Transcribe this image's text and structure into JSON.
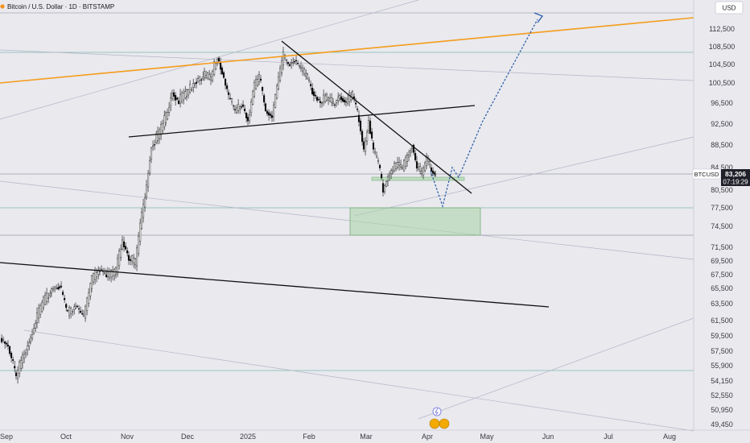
{
  "header": {
    "title": "Bitcoin / U.S. Dollar · 1D · BITSTAMP",
    "currency_button": "USD"
  },
  "chart_data": {
    "type": "candlestick",
    "symbol": "BTCUSD",
    "last_price": "83,206",
    "countdown": "07:19:29",
    "x_ticks": [
      "Sep",
      "Oct",
      "Nov",
      "Dec",
      "2025",
      "Feb",
      "Mar",
      "Apr",
      "May",
      "Jun",
      "Jul",
      "Aug"
    ],
    "y_ticks": [
      "112,500",
      "108,500",
      "104,500",
      "100,500",
      "96,500",
      "92,500",
      "88,500",
      "84,500",
      "80,500",
      "77,500",
      "74,500",
      "71,500",
      "69,500",
      "67,500",
      "65,500",
      "63,500",
      "61,500",
      "59,500",
      "57,500",
      "55,900",
      "54,150",
      "52,550",
      "50,950",
      "49,450"
    ],
    "grid": false,
    "annotations": {
      "upper_trendline": "orange rising resistance line",
      "descending_trendline": "black falling resistance from ~Jan top",
      "neckline": "black slightly rising line ~91k–95k",
      "lower_trendline": "black falling support ~68k–64k",
      "support_zone": "green box ~74k–78k",
      "projection": "blue dotted path down to ~78k then up to ~115k"
    }
  },
  "colors": {
    "up": "#ffffff",
    "down": "#000000",
    "orange_line": "#f59c1a",
    "projection": "#2f5fa8",
    "zone": "#9ccc9c"
  }
}
